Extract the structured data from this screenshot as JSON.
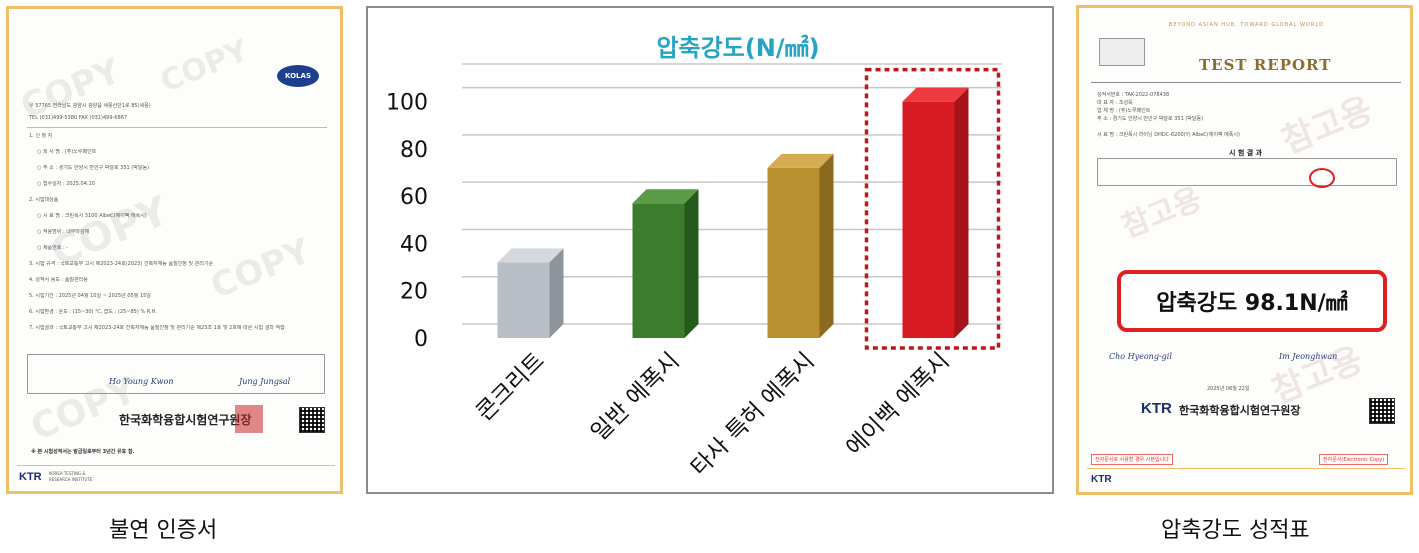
{
  "chart_data": {
    "type": "bar",
    "title": "압축강도(N/㎟)",
    "categories": [
      "콘크리트",
      "일반 에폭시",
      "타사 특허 에폭시",
      "에이백 에폭시"
    ],
    "values": [
      32,
      57,
      72,
      100
    ],
    "ylim": [
      0,
      110
    ],
    "yticks": [
      "0",
      "20",
      "40",
      "60",
      "80",
      "100"
    ],
    "grid": true,
    "highlight_index": 3,
    "colors": {
      "title": "#27a3c4",
      "bars": [
        "#b9bfc6",
        "#3b7d2c",
        "#b8902f",
        "#d81b22"
      ],
      "bar_sides": [
        "#8d949b",
        "#245a1a",
        "#8a6a1d",
        "#a4141a"
      ],
      "bar_tops": [
        "#d5d9de",
        "#5a9c48",
        "#d4ad52",
        "#ee3a40"
      ],
      "highlight_border": "#c01818",
      "grid": "#c8c8c8"
    }
  },
  "captions": {
    "left": "불연 인증서",
    "right": "압축강도 성적표"
  },
  "left_certificate": {
    "org_name": "한국화학융합시험연구원장",
    "logo": "KTR",
    "logo_sub": "KOREA TESTING &\nRESEARCH INSTITUTE",
    "footer_note": "※ 본 시험성적서는 발급일로부터 3년간 유효 함.",
    "badge": "KOLAS",
    "lines": [
      "1. 신 청 자",
      "○ 회 사 명 : (주)노루페인트",
      "○ 주     소 : 경기도 안양시 만안구 박달로 351 (박달동)",
      "○ 접수일자 : 2025.04.10",
      "2. 시험대상품",
      "○ 시 료 명 : 크린폭시 3100 AlbeC(에이벡 에폭시)",
      "○ 적용범위 : 내부마감재",
      "○ 제품번호 : -",
      "3. 시험 규격 : 국토교통부 고시 제2023-24호(2023) 건축자재등 품질인정 및 관리기준",
      "4. 성적서 용도 : 품질관리용",
      "5. 시험기간 : 2025년 04월 10일 ~ 2025년 05월 15일",
      "6. 시험환경 : 온도 : (15~30) ℃, 습도 : (25~85) % R.H.",
      "7. 시험결과 : 국토교통부 고시 제2023-24호 건축자재등 품질인정 및 관리기준 제23조 1호 및 2호에 따른 시험 결과 적합"
    ],
    "signer_1": "Ho Young Kwon",
    "signer_2": "Jung Jungsal"
  },
  "right_certificate": {
    "banner": "BEYOND ASIAN HUB, TOWARD GLOBAL WORLD",
    "title": "TEST REPORT",
    "section": "시 험 결 과",
    "callout": "압축강도 98.1N/㎟",
    "org_name": "한국화학융합시험연구원장",
    "logo": "KTR",
    "date": "2025년 06월 22일",
    "signer_1": "Cho Hyeong-gil",
    "signer_2": "Im Jeonghwan",
    "stamp_left": "전자문서로 사용할 경우 사본입니다",
    "stamp_right": "전자문서(Electronic Copy)"
  }
}
